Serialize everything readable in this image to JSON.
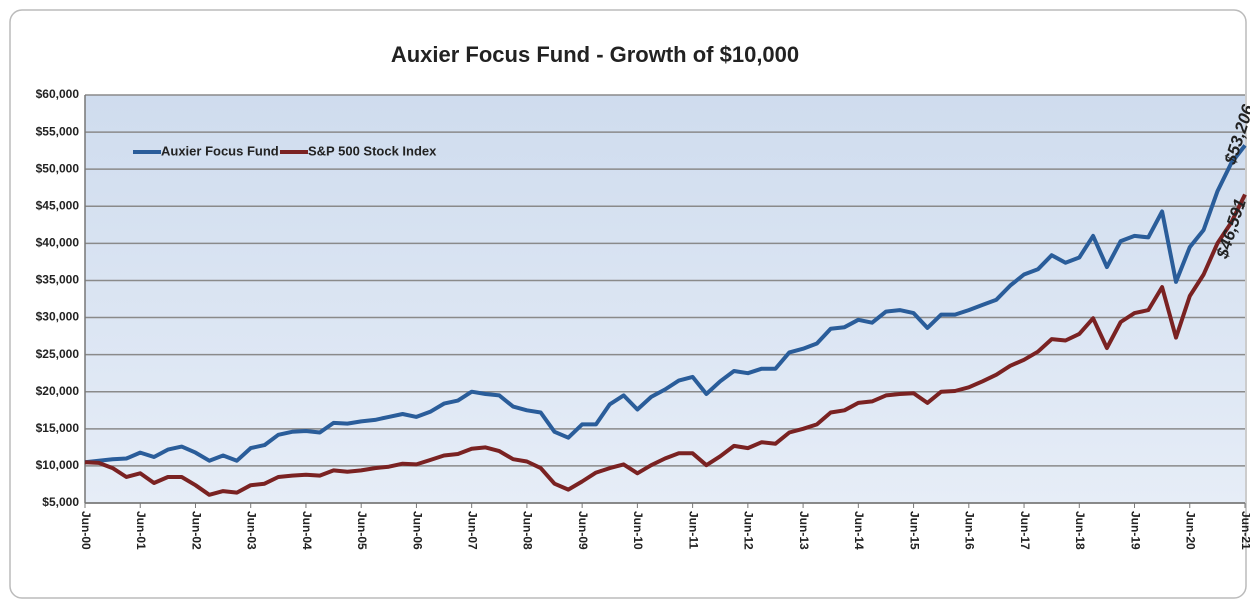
{
  "chart_data": {
    "type": "line",
    "title": "Auxier Focus Fund - Growth of $10,000",
    "categories": [
      "Jun-00",
      null,
      null,
      null,
      "Jun-01",
      null,
      null,
      null,
      "Jun-02",
      null,
      null,
      null,
      "Jun-03",
      null,
      null,
      null,
      "Jun-04",
      null,
      null,
      null,
      "Jun-05",
      null,
      null,
      null,
      "Jun-06",
      null,
      null,
      null,
      "Jun-07",
      null,
      null,
      null,
      "Jun-08",
      null,
      null,
      null,
      "Jun-09",
      null,
      null,
      null,
      "Jun-10",
      null,
      null,
      null,
      "Jun-11",
      null,
      null,
      null,
      "Jun-12",
      null,
      null,
      null,
      "Jun-13",
      null,
      null,
      null,
      "Jun-14",
      null,
      null,
      null,
      "Jun-15",
      null,
      null,
      null,
      "Jun-16",
      null,
      null,
      null,
      "Jun-17",
      null,
      null,
      null,
      "Jun-18",
      null,
      null,
      null,
      "Jun-19",
      null,
      null,
      null,
      "Jun-20",
      null,
      null,
      null,
      "Jun-21"
    ],
    "series": [
      {
        "name": "Auxier Focus Fund",
        "color": "#2a5d9a",
        "end_label": "$53,206",
        "values": [
          10500,
          10700,
          10900,
          11000,
          11800,
          11200,
          12200,
          12600,
          11800,
          10700,
          11400,
          10700,
          12400,
          12800,
          14200,
          14600,
          14700,
          14500,
          15800,
          15700,
          16000,
          16200,
          16600,
          17000,
          16600,
          17300,
          18400,
          18800,
          20000,
          19700,
          19500,
          18000,
          17500,
          17200,
          14600,
          13800,
          15600,
          15600,
          18300,
          19500,
          17600,
          19300,
          20300,
          21500,
          22000,
          19700,
          21400,
          22800,
          22500,
          23100,
          23100,
          25300,
          25800,
          26500,
          28500,
          28700,
          29700,
          29300,
          30800,
          31000,
          30600,
          28600,
          30400,
          30400,
          31000,
          31700,
          32400,
          34300,
          35800,
          36500,
          38400,
          37400,
          38100,
          41000,
          36800,
          40300,
          41000,
          40800,
          44300,
          34800,
          39500,
          41800,
          47000,
          50800,
          53206
        ]
      },
      {
        "name": "S&P 500 Stock Index",
        "color": "#7a2222",
        "end_label": "$46,591",
        "values": [
          10500,
          10400,
          9700,
          8500,
          9000,
          7700,
          8500,
          8500,
          7400,
          6100,
          6600,
          6400,
          7400,
          7600,
          8500,
          8700,
          8800,
          8700,
          9400,
          9200,
          9400,
          9700,
          9900,
          10300,
          10200,
          10800,
          11400,
          11600,
          12300,
          12500,
          12000,
          10900,
          10600,
          9700,
          7600,
          6800,
          7900,
          9100,
          9700,
          10200,
          9000,
          10100,
          11000,
          11700,
          11700,
          10100,
          11300,
          12700,
          12400,
          13200,
          13000,
          14500,
          15000,
          15600,
          17200,
          17500,
          18500,
          18700,
          19500,
          19700,
          19800,
          18500,
          20000,
          20100,
          20600,
          21400,
          22300,
          23500,
          24300,
          25400,
          27100,
          26900,
          27800,
          29900,
          25900,
          29400,
          30600,
          31000,
          34100,
          27300,
          32900,
          35800,
          40000,
          42800,
          46591
        ]
      }
    ],
    "ylim": [
      5000,
      60000
    ],
    "yticks": [
      {
        "value": 5000,
        "label": "$5,000"
      },
      {
        "value": 10000,
        "label": "$10,000"
      },
      {
        "value": 15000,
        "label": "$15,000"
      },
      {
        "value": 20000,
        "label": "$20,000"
      },
      {
        "value": 25000,
        "label": "$25,000"
      },
      {
        "value": 30000,
        "label": "$30,000"
      },
      {
        "value": 35000,
        "label": "$35,000"
      },
      {
        "value": 40000,
        "label": "$40,000"
      },
      {
        "value": 45000,
        "label": "$45,000"
      },
      {
        "value": 50000,
        "label": "$50,000"
      },
      {
        "value": 55000,
        "label": "$55,000"
      },
      {
        "value": 60000,
        "label": "$60,000"
      }
    ],
    "grid": true,
    "legend": "top-left"
  }
}
